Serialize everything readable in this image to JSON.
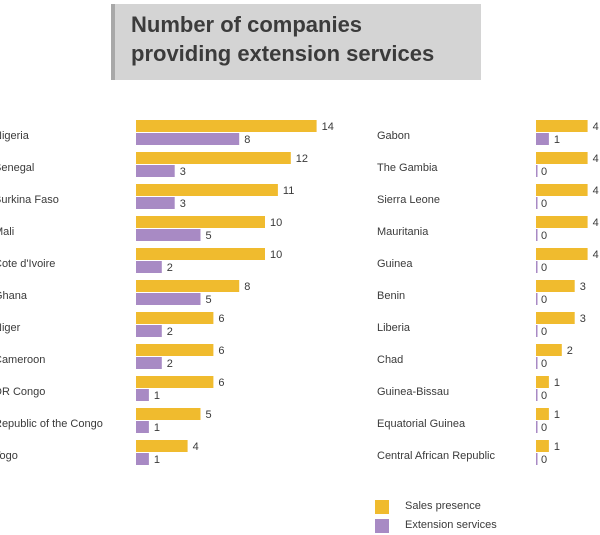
{
  "chart_data": {
    "type": "bar",
    "orientation": "horizontal",
    "title_lines": [
      "Number of companies",
      "providing extension services"
    ],
    "categories_left": [
      "Nigeria",
      "Senegal",
      "Burkina Faso",
      "Mali",
      "Cote d'Ivoire",
      "Ghana",
      "Niger",
      "Cameroon",
      "DR Congo",
      "Republic of the Congo",
      "Togo"
    ],
    "categories_right": [
      "Gabon",
      "The Gambia",
      "Sierra Leone",
      "Mauritania",
      "Guinea",
      "Benin",
      "Liberia",
      "Chad",
      "Guinea-Bissau",
      "Equatorial Guinea",
      "Central African Republic"
    ],
    "series": [
      {
        "name": "Sales presence",
        "color": "#f0bb2e",
        "values_left": [
          14,
          12,
          11,
          10,
          10,
          8,
          6,
          6,
          6,
          5,
          4
        ],
        "values_right": [
          4,
          4,
          4,
          4,
          4,
          3,
          3,
          2,
          1,
          1,
          1
        ]
      },
      {
        "name": "Extension services",
        "color": "#a88ac4",
        "values_left": [
          8,
          3,
          3,
          5,
          2,
          5,
          2,
          2,
          1,
          1,
          1
        ],
        "values_right": [
          1,
          0,
          0,
          0,
          0,
          0,
          0,
          0,
          0,
          0,
          0
        ]
      }
    ],
    "legend_placement": "bottom-right",
    "grid": false
  }
}
